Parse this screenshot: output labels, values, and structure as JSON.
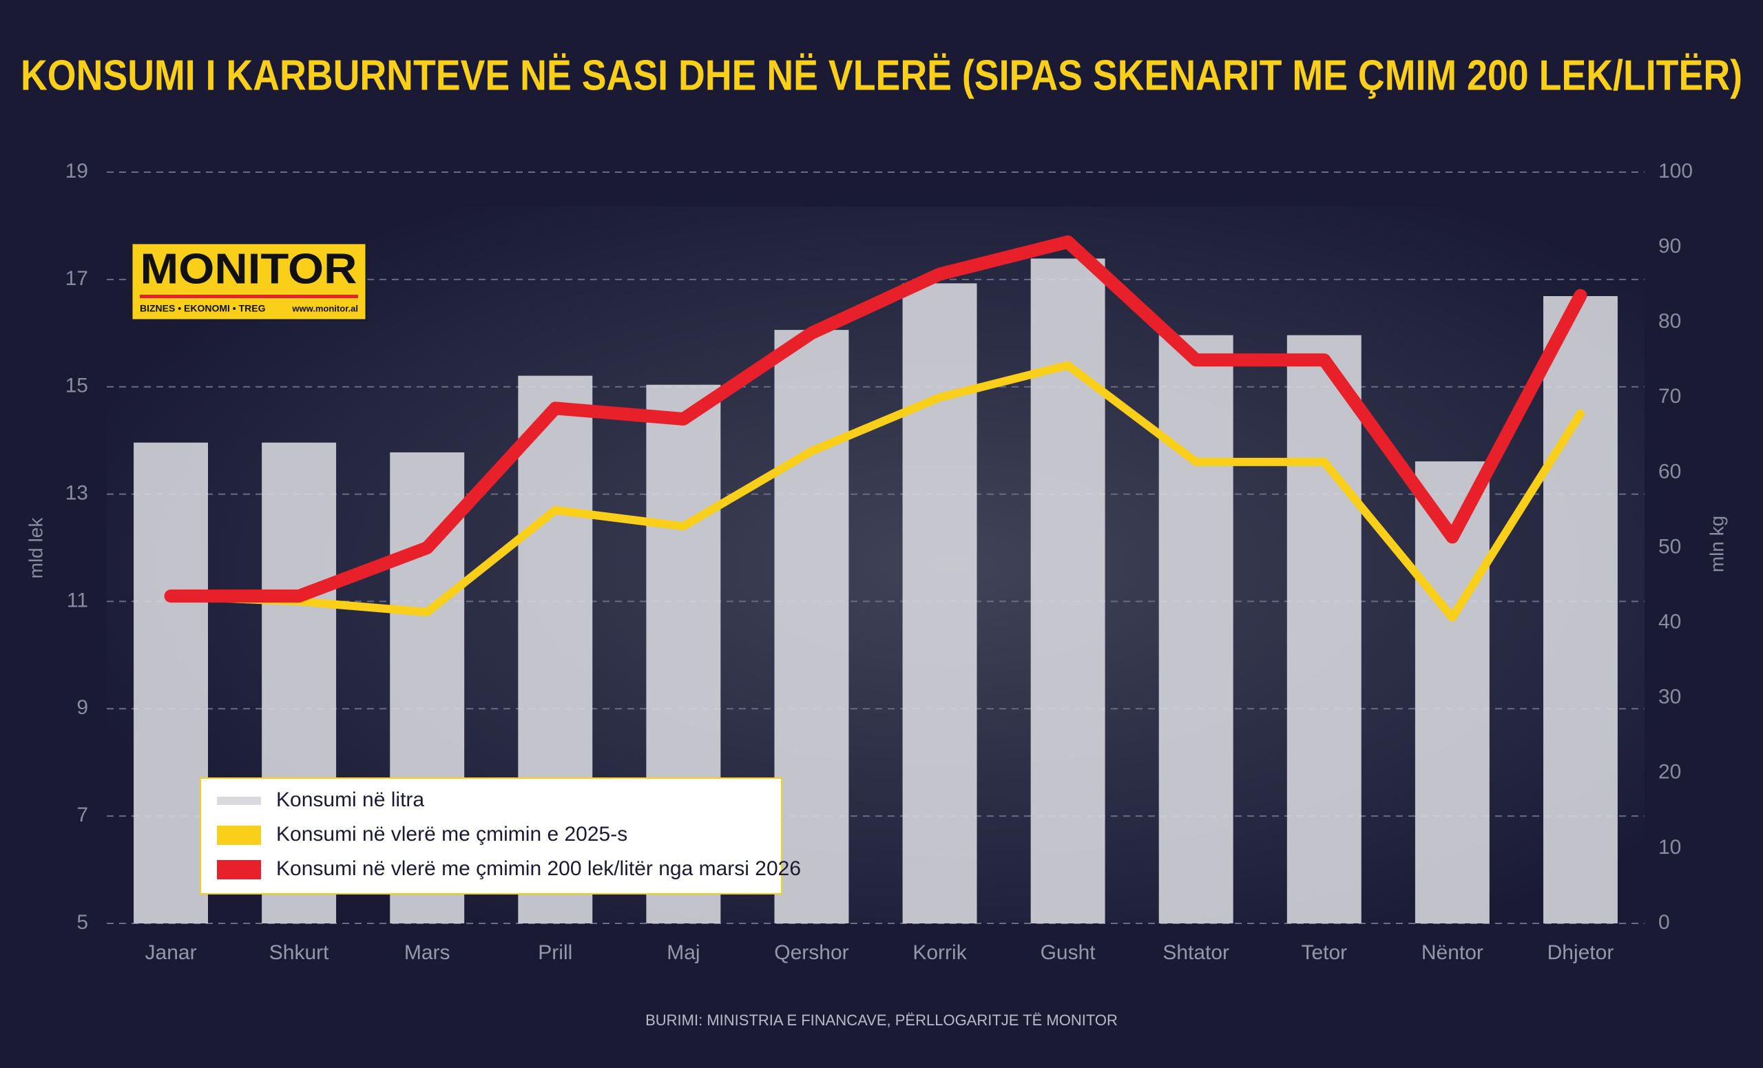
{
  "chart_data": {
    "type": "combo",
    "title": "KONSUMI I KARBURNTEVE NË SASI DHE NË VLERË (SIPAS SKENARIT ME ÇMIM 200 LEK/LITËR)",
    "categories": [
      "Janar",
      "Shkurt",
      "Mars",
      "Prill",
      "Maj",
      "Qershor",
      "Korrik",
      "Gusht",
      "Shtator",
      "Tetor",
      "Nëntor",
      "Dhjetor"
    ],
    "series": [
      {
        "name": "Konsumi në litra",
        "type": "bar",
        "axis": "y2",
        "color": "#d9d9df",
        "values": [
          64,
          64,
          62.7,
          72.9,
          71.7,
          79,
          85.2,
          88.5,
          78.3,
          78.3,
          61.5,
          83.5
        ]
      },
      {
        "name": "Konsumi në vlerë me çmimin e 2025-s",
        "type": "line",
        "axis": "y",
        "color": "#f9cf1a",
        "values": [
          11.1,
          11.0,
          10.8,
          12.7,
          12.4,
          13.8,
          14.8,
          15.4,
          13.6,
          13.6,
          10.7,
          14.5
        ]
      },
      {
        "name": "Konsumi në vlerë me çmimin 200 lek/litër nga marsi 2026",
        "type": "line",
        "axis": "y",
        "color": "#e8202a",
        "values": [
          11.1,
          11.1,
          12.0,
          14.6,
          14.4,
          16.0,
          17.1,
          17.7,
          15.5,
          15.5,
          12.2,
          16.7
        ]
      }
    ],
    "y_label": "mld lek",
    "y2_label": "mln kg",
    "ylim": [
      5,
      19
    ],
    "yticks": [
      5,
      7,
      9,
      11,
      13,
      15,
      17,
      19
    ],
    "y2lim": [
      0,
      100
    ],
    "y2ticks": [
      0,
      10,
      20,
      30,
      40,
      50,
      60,
      70,
      80,
      90,
      100
    ],
    "grid": true,
    "legend": "lower left",
    "source": "BURIMI: MINISTRIA E FINANCAVE, PËRLLOGARITJE TË MONITOR"
  },
  "logo": {
    "name": "MONITOR",
    "tagline": "BIZNES • EKONOMI • TREG",
    "url": "www.monitor.al"
  }
}
